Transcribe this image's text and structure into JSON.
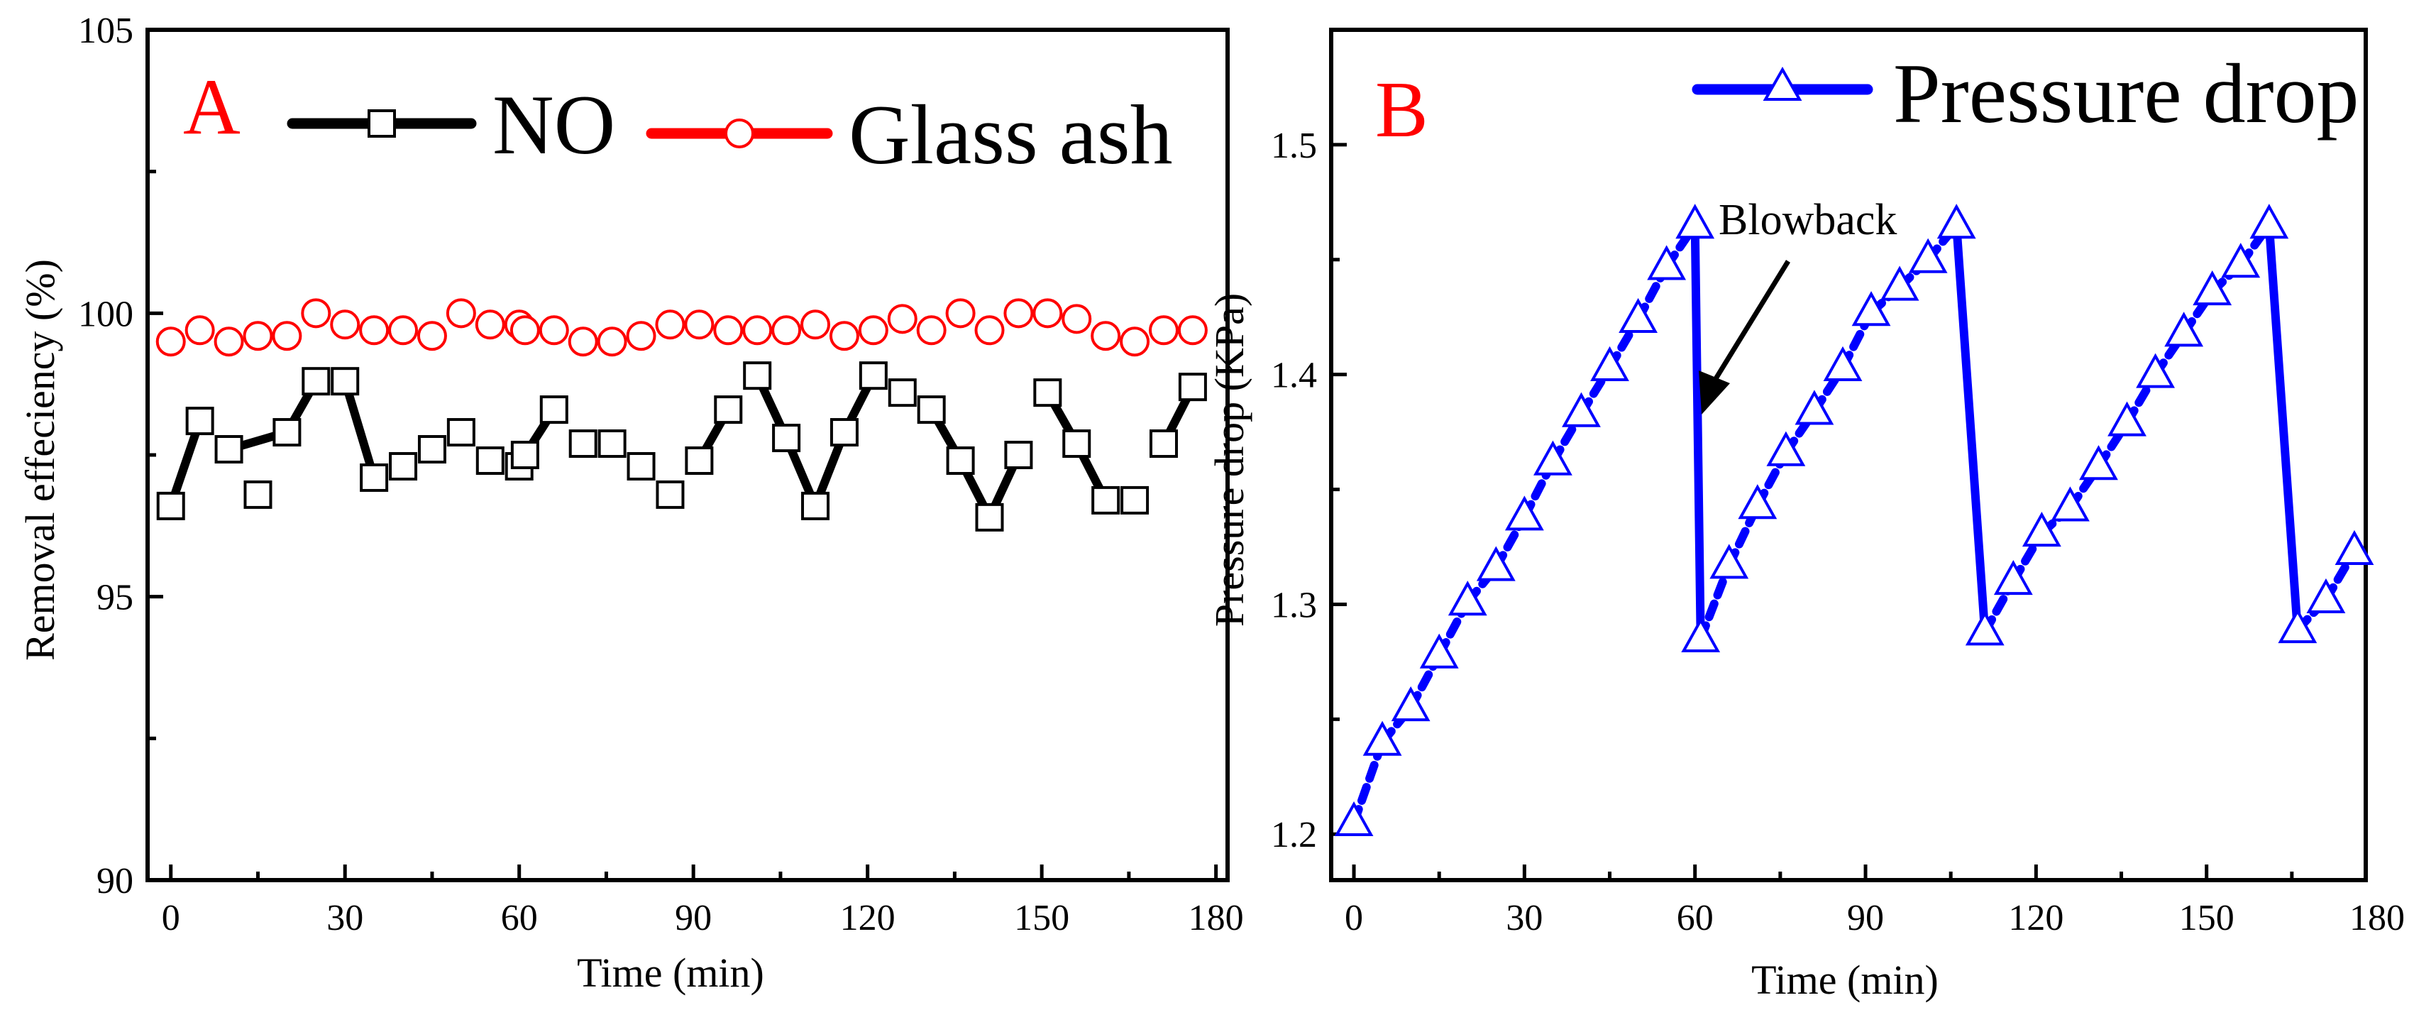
{
  "chart_data": [
    {
      "panel_label": "A",
      "type": "line",
      "xlabel": "Time (min)",
      "ylabel": "Removal effeciency (%)",
      "xlim": [
        -4,
        182
      ],
      "ylim": [
        90,
        105
      ],
      "xticks": [
        0,
        30,
        60,
        90,
        120,
        150,
        180
      ],
      "yticks": [
        90,
        95,
        100,
        105
      ],
      "grid": false,
      "legend_position": "top",
      "series": [
        {
          "name": "NO",
          "color": "#000000",
          "marker": "square",
          "x": [
            0,
            5,
            10,
            15,
            20,
            25,
            30,
            35,
            40,
            45,
            50,
            55,
            60,
            61,
            66,
            71,
            76,
            81,
            86,
            91,
            96,
            101,
            106,
            111,
            116,
            121,
            126,
            131,
            136,
            141,
            146,
            151,
            156,
            161,
            166,
            171,
            176
          ],
          "y": [
            96.6,
            98.1,
            97.6,
            96.8,
            97.9,
            98.8,
            98.8,
            97.1,
            97.3,
            97.6,
            97.9,
            97.4,
            97.3,
            97.5,
            98.3,
            97.7,
            97.7,
            97.3,
            96.8,
            97.4,
            98.3,
            98.9,
            97.8,
            96.6,
            97.9,
            98.9,
            98.6,
            98.3,
            97.4,
            96.4,
            97.5,
            98.6,
            97.7,
            96.7,
            96.7,
            97.7,
            98.7
          ],
          "segments": [
            [
              0,
              1
            ],
            [
              2,
              4
            ],
            [
              4,
              5
            ],
            [
              6,
              7
            ],
            [
              13,
              14
            ],
            [
              19,
              20
            ],
            [
              21,
              22
            ],
            [
              22,
              23
            ],
            [
              23,
              24
            ],
            [
              24,
              25
            ],
            [
              27,
              28
            ],
            [
              28,
              29
            ],
            [
              29,
              30
            ],
            [
              31,
              32
            ],
            [
              32,
              33
            ],
            [
              35,
              36
            ]
          ]
        },
        {
          "name": "Glass ash",
          "color": "#ff0000",
          "marker": "circle",
          "x": [
            0,
            5,
            10,
            15,
            20,
            25,
            30,
            35,
            40,
            45,
            50,
            55,
            60,
            61,
            66,
            71,
            76,
            81,
            86,
            91,
            96,
            101,
            106,
            111,
            116,
            121,
            126,
            131,
            136,
            141,
            146,
            151,
            156,
            161,
            166,
            171,
            176
          ],
          "y": [
            99.5,
            99.7,
            99.5,
            99.6,
            99.6,
            100.0,
            99.8,
            99.7,
            99.7,
            99.6,
            100.0,
            99.8,
            99.8,
            99.7,
            99.7,
            99.5,
            99.5,
            99.6,
            99.8,
            99.8,
            99.7,
            99.7,
            99.7,
            99.8,
            99.6,
            99.7,
            99.9,
            99.7,
            100.0,
            99.7,
            100.0,
            100.0,
            99.9,
            99.6,
            99.5,
            99.7,
            99.7
          ],
          "segments": []
        }
      ]
    },
    {
      "panel_label": "B",
      "type": "line",
      "xlabel": "Time (min)",
      "ylabel": "Pressure drop (KPa)",
      "xlim": [
        -4,
        178
      ],
      "ylim": [
        1.18,
        1.55
      ],
      "xticks": [
        0,
        30,
        60,
        90,
        120,
        150,
        180
      ],
      "yticks": [
        1.2,
        1.3,
        1.4,
        1.5
      ],
      "grid": false,
      "legend_position": "top-right",
      "annotation": {
        "text": "Blowback",
        "arrow_to": [
          60,
          1.38
        ]
      },
      "series": [
        {
          "name": "Pressure drop",
          "color": "#0000ff",
          "marker": "triangle",
          "x": [
            0,
            5,
            10,
            15,
            20,
            25,
            30,
            35,
            40,
            45,
            50,
            55,
            60,
            61,
            66,
            71,
            76,
            81,
            86,
            91,
            96,
            101,
            106,
            111,
            116,
            121,
            126,
            131,
            136,
            141,
            146,
            151,
            156,
            161,
            166,
            171,
            176
          ],
          "y": [
            1.205,
            1.24,
            1.255,
            1.278,
            1.301,
            1.316,
            1.338,
            1.362,
            1.383,
            1.403,
            1.424,
            1.447,
            1.465,
            1.285,
            1.317,
            1.343,
            1.366,
            1.384,
            1.403,
            1.427,
            1.438,
            1.45,
            1.465,
            1.288,
            1.31,
            1.331,
            1.342,
            1.36,
            1.379,
            1.4,
            1.418,
            1.436,
            1.448,
            1.465,
            1.289,
            1.302,
            1.323
          ]
        }
      ]
    }
  ]
}
